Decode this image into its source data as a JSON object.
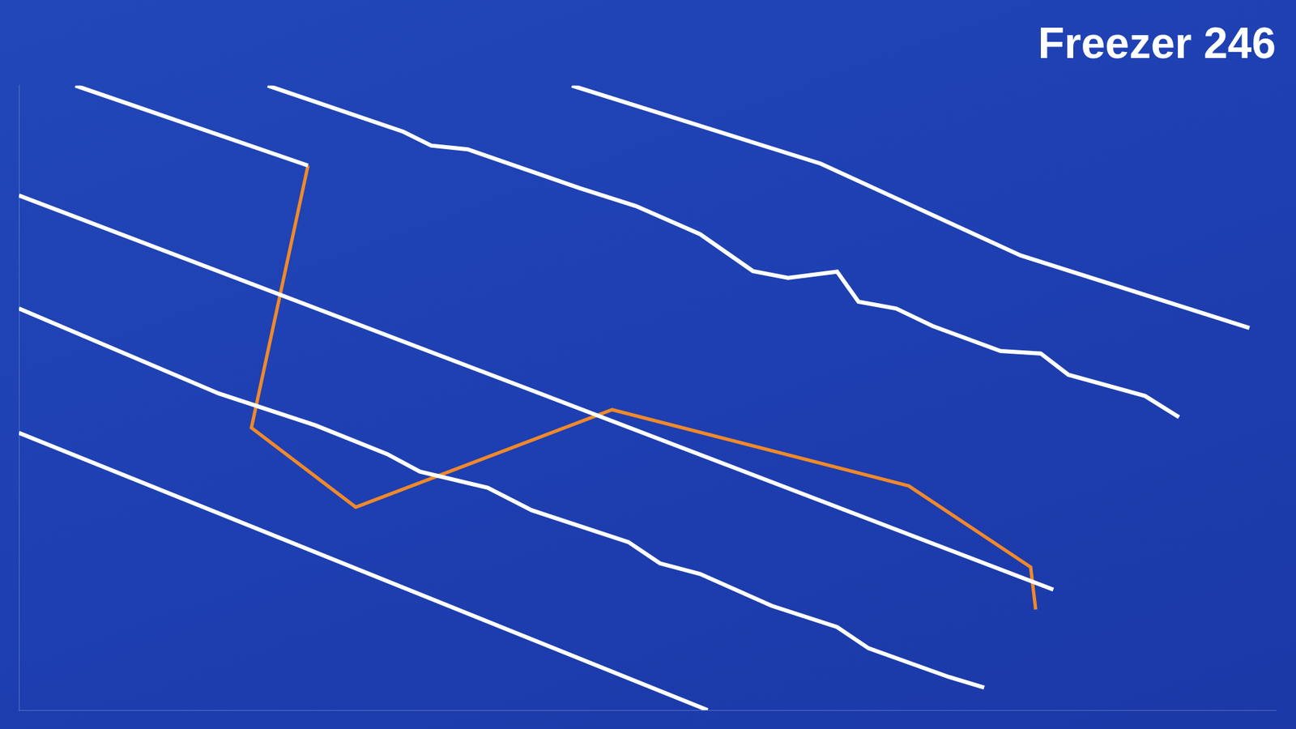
{
  "chart_data": {
    "type": "line",
    "title": "Freezer 246",
    "xlim": [
      0,
      100
    ],
    "ylim": [
      0,
      100
    ],
    "grid": false,
    "tick_labels": false,
    "series": [
      {
        "color": "#ffffff",
        "x": [
          44.0,
          63.8,
          79.7,
          97.9
        ],
        "values": [
          100,
          87.5,
          72.8,
          61.2
        ]
      },
      {
        "color": "#ffffff",
        "x": [
          19.8,
          30.6,
          32.8,
          35.7,
          44.6,
          49.1,
          54.2,
          58.4,
          61.2,
          65.1,
          66.8,
          69.8,
          72.7,
          78.1,
          81.3,
          83.5,
          89.6,
          92.3
        ],
        "values": [
          100,
          92.6,
          90.4,
          89.8,
          83.6,
          80.7,
          76.2,
          70.3,
          69.2,
          70.2,
          65.4,
          64.3,
          61.5,
          57.5,
          57.1,
          53.7,
          50.3,
          46.9
        ]
      },
      {
        "color": "#ffffff",
        "x": [
          0,
          40.8,
          82.3
        ],
        "values": [
          82.4,
          51.2,
          19.3
        ]
      },
      {
        "color": "#ffffff",
        "x": [
          0,
          15.9,
          23.6,
          29.3,
          31.9,
          37.3,
          40.8,
          48.5,
          51.0,
          54.2,
          59.9,
          65.1,
          67.6,
          74.0,
          76.8
        ],
        "values": [
          64.3,
          50.7,
          45.6,
          41.0,
          38.2,
          35.6,
          32.0,
          26.9,
          23.5,
          21.8,
          16.7,
          13.3,
          9.9,
          5.3,
          3.6
        ]
      },
      {
        "color": "#ffffff",
        "x": [
          0,
          54.8
        ],
        "values": [
          44.4,
          0
        ]
      },
      {
        "color": "#ffffff",
        "x": [
          4.5,
          23.0
        ],
        "values": [
          100,
          87.2
        ]
      },
      {
        "color": "#f0892a",
        "x": [
          23.0,
          18.5,
          26.8,
          47.2,
          70.8,
          80.5,
          80.9
        ],
        "values": [
          87.2,
          45.2,
          32.5,
          48.1,
          35.9,
          22.9,
          16.1
        ]
      }
    ]
  }
}
